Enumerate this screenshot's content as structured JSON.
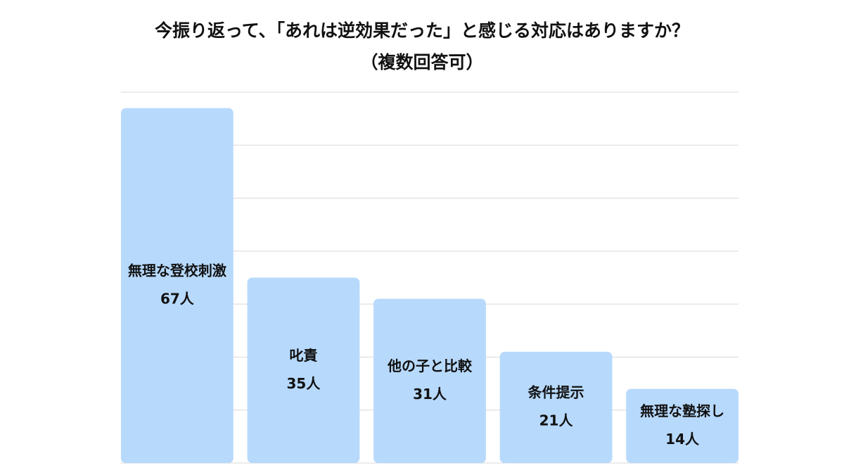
{
  "chart_data": {
    "type": "bar",
    "title": "今振り返って、「あれは逆効果だった」と感じる対応はありますか？",
    "subtitle": "（複数回答可）",
    "categories": [
      "無理な登校刺激",
      "叱責",
      "他の子と比較",
      "条件提示",
      "無理な塾探し"
    ],
    "values": [
      67,
      35,
      31,
      21,
      14
    ],
    "value_labels": [
      "67人",
      "35人",
      "31人",
      "21人",
      "14人"
    ],
    "color": "#b7d9fc",
    "ylim": [
      0,
      70
    ],
    "yticks": [
      0,
      10,
      20,
      30,
      40,
      50,
      60,
      70
    ],
    "grid": true
  }
}
